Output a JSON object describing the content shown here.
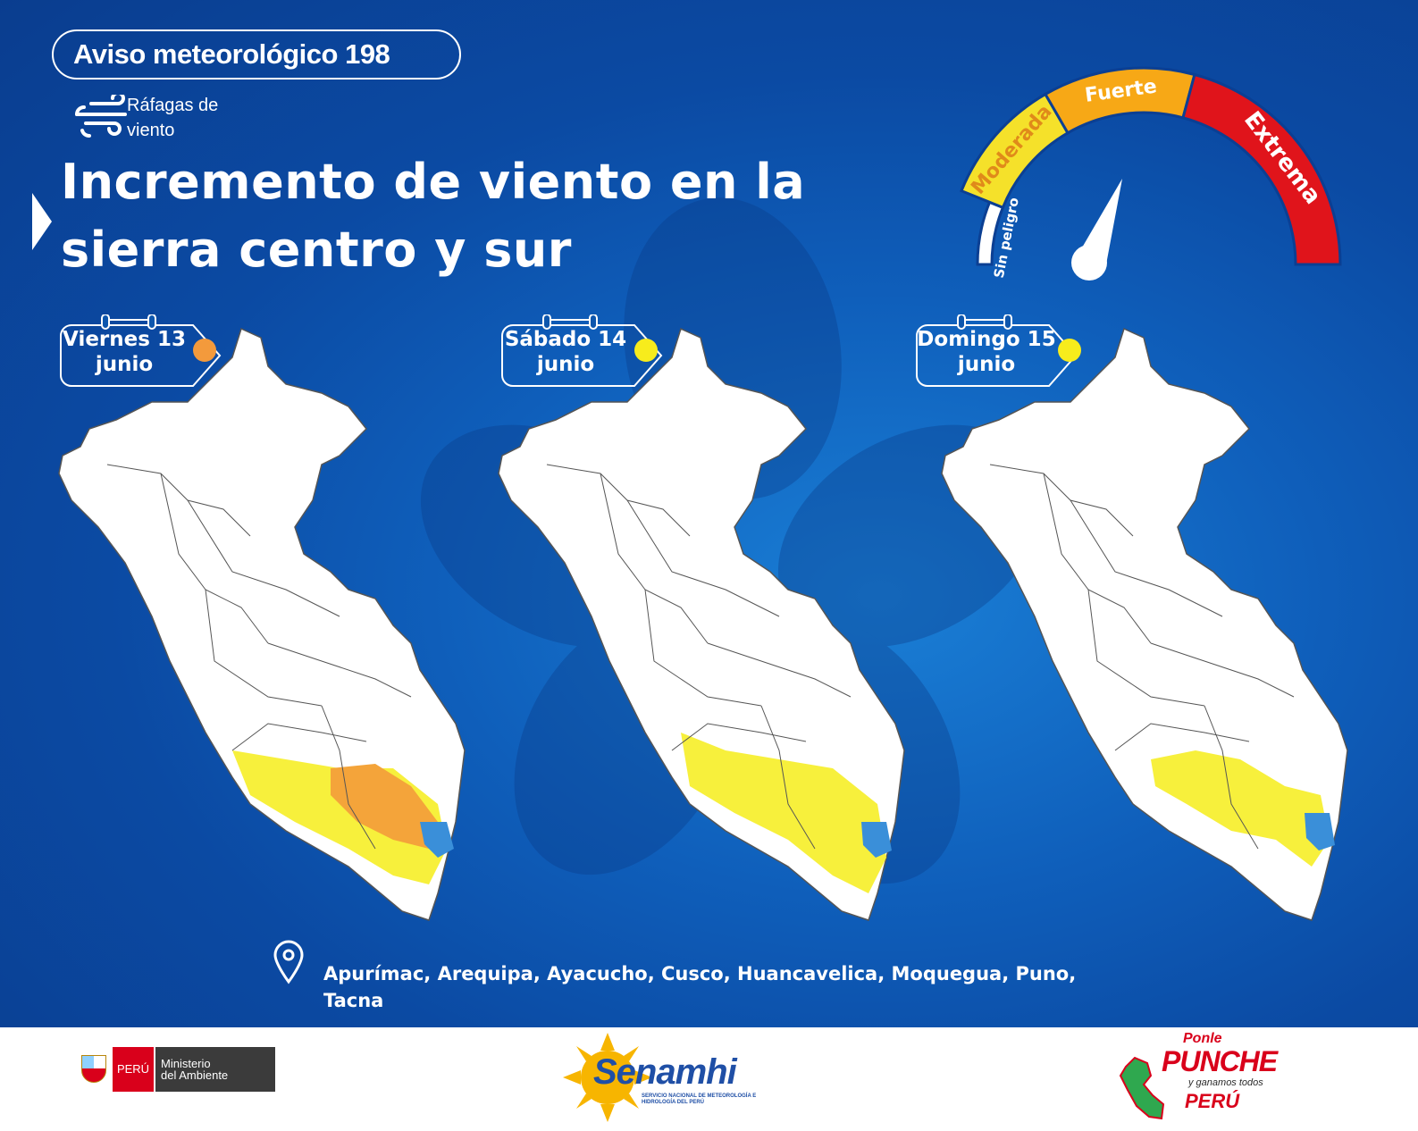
{
  "header": {
    "badge": "Aviso meteorológico 198",
    "hazard_line1": "Ráfagas de",
    "hazard_line2": "viento",
    "headline_line1": "Incremento de viento en la",
    "headline_line2": "sierra centro y sur"
  },
  "gauge": {
    "levels": [
      {
        "label": "Sin peligro",
        "color": "#ffffff"
      },
      {
        "label": "Moderada",
        "color": "#f5e12a"
      },
      {
        "label": "Fuerte",
        "color": "#f7a816"
      },
      {
        "label": "Extrema",
        "color": "#e0141b"
      }
    ],
    "indicated_level": "Fuerte"
  },
  "days": [
    {
      "line1": "Viernes 13",
      "line2": "junio",
      "level_color": "#f39a3c"
    },
    {
      "line1": "Sábado 14",
      "line2": "junio",
      "level_color": "#f7ec1c"
    },
    {
      "line1": "Domingo 15",
      "line2": "junio",
      "level_color": "#f7ec1c"
    }
  ],
  "legend_colors": {
    "moderada": "#f7f03c",
    "fuerte": "#f4a43a",
    "lake": "#3a8fd9",
    "land": "#ffffff"
  },
  "regions": "Apurímac, Arequipa, Ayacucho, Cusco, Huancavelica, Moquegua, Puno, Tacna",
  "footer": {
    "peru": "PERÚ",
    "ministerio_line1": "Ministerio",
    "ministerio_line2": "del Ambiente",
    "senamhi": "Senamhi",
    "senamhi_sub": "SERVICIO NACIONAL DE METEOROLOGÍA E HIDROLOGÍA DEL PERÚ",
    "punche_1": "Ponle",
    "punche_2": "PUNCHE",
    "punche_3": "y ganamos todos",
    "punche_4": "PERÚ"
  }
}
